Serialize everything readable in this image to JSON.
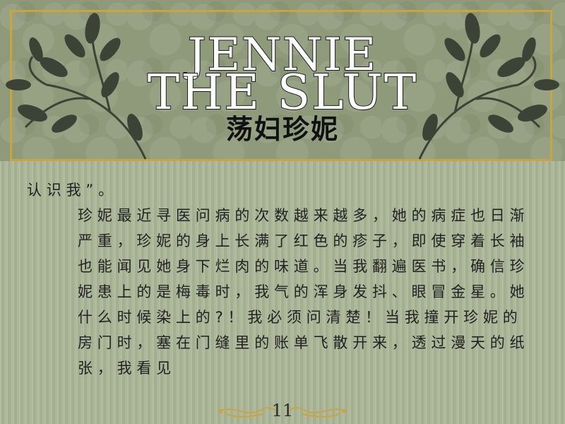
{
  "header": {
    "title_line1": "JENNIE",
    "title_line2": "THE SLUT",
    "subtitle": "荡妇珍妮"
  },
  "body": {
    "line1": "认识我”。",
    "paragraph": "珍妮最近寻医问病的次数越来越多，她的病症也日渐严重，珍妮的身上长满了红色的疹子，即使穿着长袖也能闻见她身下烂肉的味道。当我翻遍医书，确信珍妮患上的是梅毒时，我气的浑身发抖、眼冒金星。她什么时候染上的?！我必须问清楚！当我撞开珍妮的房门时，塞在门缝里的账单飞散开来，透过漫天的纸张，我看见"
  },
  "footer": {
    "page_number": "11"
  },
  "colors": {
    "background": "#a9b496",
    "header_background": "#8f9a7a",
    "frame_border": "#c9a43f",
    "vine": "#3c4236",
    "ornament": "#c9a43f"
  },
  "icons": {
    "left_decoration": "vine-leaf-icon",
    "right_decoration": "vine-leaf-icon",
    "footer_decoration": "flourish-divider-icon"
  }
}
